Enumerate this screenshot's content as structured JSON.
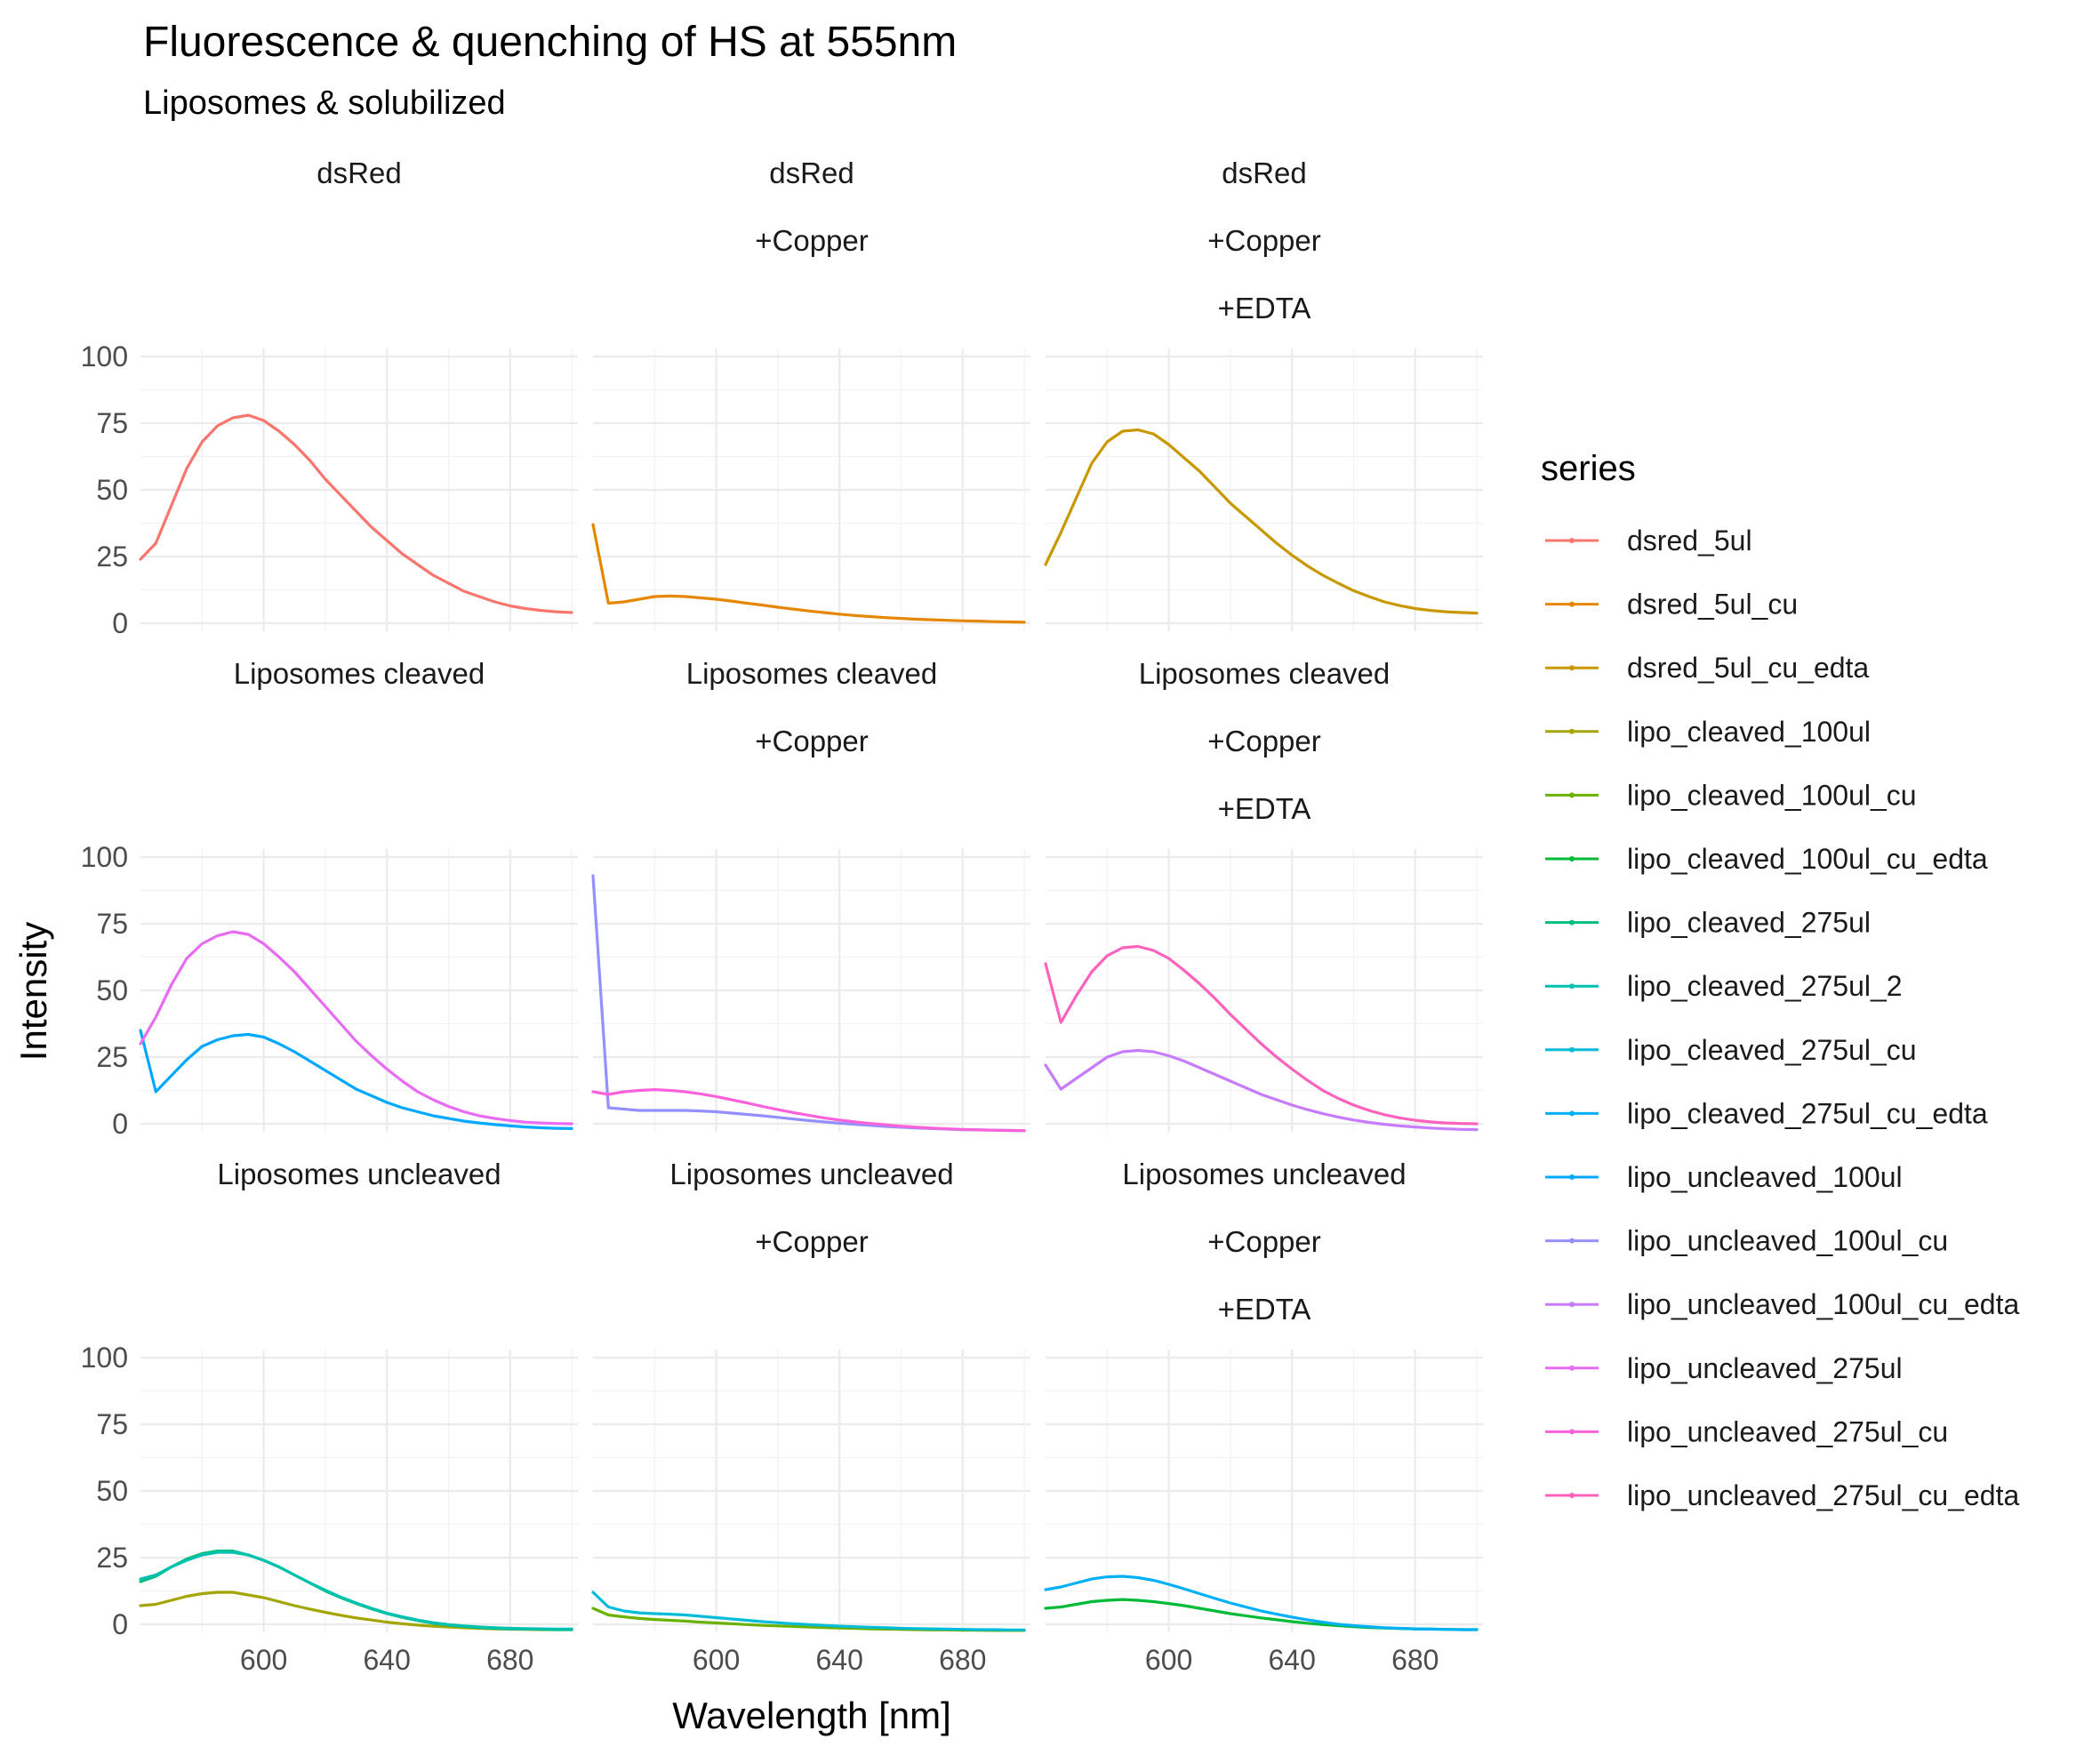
{
  "chart_data": {
    "type": "line",
    "title": "Fluorescence & quenching of HS at 555nm",
    "subtitle": "Liposomes & solubilized",
    "xlabel": "Wavelength [nm]",
    "ylabel": "Intensity",
    "xlim": [
      560,
      702
    ],
    "ylim": [
      -3,
      103
    ],
    "x_ticks": [
      600,
      640,
      680
    ],
    "y_ticks": [
      0,
      25,
      50,
      75,
      100
    ],
    "grid": true,
    "legend": {
      "title": "series",
      "placement": "right",
      "entries": [
        {
          "name": "dsred_5ul",
          "color": "#F8766D"
        },
        {
          "name": "dsred_5ul_cu",
          "color": "#E58700"
        },
        {
          "name": "dsred_5ul_cu_edta",
          "color": "#C99800"
        },
        {
          "name": "lipo_cleaved_100ul",
          "color": "#A3A500"
        },
        {
          "name": "lipo_cleaved_100ul_cu",
          "color": "#6BB100"
        },
        {
          "name": "lipo_cleaved_100ul_cu_edta",
          "color": "#00BA38"
        },
        {
          "name": "lipo_cleaved_275ul",
          "color": "#00BF7D"
        },
        {
          "name": "lipo_cleaved_275ul_2",
          "color": "#00C0AF"
        },
        {
          "name": "lipo_cleaved_275ul_cu",
          "color": "#00BCD8"
        },
        {
          "name": "lipo_cleaved_275ul_cu_edta",
          "color": "#00B0F6"
        },
        {
          "name": "lipo_uncleaved_100ul",
          "color": "#00A9FF"
        },
        {
          "name": "lipo_uncleaved_100ul_cu",
          "color": "#9590FF"
        },
        {
          "name": "lipo_uncleaved_100ul_cu_edta",
          "color": "#C77CFF"
        },
        {
          "name": "lipo_uncleaved_275ul",
          "color": "#E76BF3"
        },
        {
          "name": "lipo_uncleaved_275ul_cu",
          "color": "#FA62DB"
        },
        {
          "name": "lipo_uncleaved_275ul_cu_edta",
          "color": "#FF62BC"
        }
      ]
    },
    "x": [
      560,
      565,
      570,
      575,
      580,
      585,
      590,
      595,
      600,
      605,
      610,
      615,
      620,
      625,
      630,
      635,
      640,
      645,
      650,
      655,
      660,
      665,
      670,
      675,
      680,
      685,
      690,
      695,
      700
    ],
    "panels": [
      {
        "row": 0,
        "col": 0,
        "strip": [
          "dsRed"
        ],
        "series": [
          {
            "name": "dsred_5ul",
            "values": [
              24,
              30,
              44,
              58,
              68,
              74,
              77,
              78,
              76,
              72,
              67,
              61,
              54,
              48,
              42,
              36,
              31,
              26,
              22,
              18,
              15,
              12,
              10,
              8,
              6.5,
              5.5,
              4.8,
              4.3,
              4
            ]
          }
        ]
      },
      {
        "row": 0,
        "col": 1,
        "strip": [
          "dsRed",
          "+Copper"
        ],
        "series": [
          {
            "name": "dsred_5ul_cu",
            "values": [
              37,
              7.5,
              8,
              9,
              10,
              10.2,
              10,
              9.5,
              9,
              8.3,
              7.5,
              6.8,
              6,
              5.3,
              4.6,
              4,
              3.4,
              2.9,
              2.5,
              2.1,
              1.8,
              1.5,
              1.3,
              1.1,
              0.9,
              0.8,
              0.6,
              0.5,
              0.4
            ]
          }
        ]
      },
      {
        "row": 0,
        "col": 2,
        "strip": [
          "dsRed",
          "+Copper",
          "+EDTA"
        ],
        "series": [
          {
            "name": "dsred_5ul_cu_edta",
            "values": [
              22,
              34,
              47,
              60,
              68,
              72,
              72.5,
              71,
              67,
              62,
              57,
              51,
              45,
              40,
              35,
              30,
              25.5,
              21.5,
              18,
              15,
              12.2,
              10,
              8,
              6.6,
              5.5,
              4.8,
              4.3,
              4,
              3.8
            ]
          }
        ]
      },
      {
        "row": 1,
        "col": 0,
        "strip": [
          "Liposomes cleaved"
        ],
        "series": [
          {
            "name": "lipo_uncleaved_100ul",
            "values": [
              35,
              12,
              18,
              24,
              29,
              31.5,
              33,
              33.5,
              32.5,
              30,
              27,
              23.5,
              20,
              16.5,
              13,
              10.5,
              8,
              6,
              4.5,
              3,
              2,
              1,
              0.3,
              -0.3,
              -0.8,
              -1.2,
              -1.5,
              -1.7,
              -1.8
            ]
          },
          {
            "name": "lipo_uncleaved_275ul",
            "values": [
              30,
              40,
              52,
              62,
              67.5,
              70.5,
              72,
              71,
              67.5,
              62.5,
              57,
              50.5,
              44,
              37.5,
              31,
              25.5,
              20.5,
              16,
              12,
              9,
              6.5,
              4.5,
              3,
              2,
              1.2,
              0.6,
              0.3,
              0.1,
              0
            ]
          }
        ]
      },
      {
        "row": 1,
        "col": 1,
        "strip": [
          "Liposomes cleaved",
          "+Copper"
        ],
        "series": [
          {
            "name": "lipo_uncleaved_100ul_cu",
            "values": [
              93,
              6,
              5.5,
              5,
              5,
              5,
              5,
              4.8,
              4.5,
              4,
              3.5,
              3,
              2.4,
              1.8,
              1.2,
              0.7,
              0.2,
              -0.2,
              -0.6,
              -1,
              -1.3,
              -1.6,
              -1.8,
              -2,
              -2.2,
              -2.3,
              -2.4,
              -2.5,
              -2.6
            ]
          },
          {
            "name": "lipo_uncleaved_275ul_cu",
            "values": [
              12,
              11,
              12,
              12.5,
              12.8,
              12.5,
              12,
              11.2,
              10.2,
              9,
              7.8,
              6.5,
              5.3,
              4.2,
              3.2,
              2.2,
              1.4,
              0.7,
              0.1,
              -0.4,
              -0.9,
              -1.3,
              -1.6,
              -1.9,
              -2.1,
              -2.3,
              -2.4,
              -2.5,
              -2.6
            ]
          }
        ]
      },
      {
        "row": 1,
        "col": 2,
        "strip": [
          "Liposomes cleaved",
          "+Copper",
          "+EDTA"
        ],
        "series": [
          {
            "name": "lipo_uncleaved_100ul_cu_edta",
            "values": [
              22,
              13,
              17,
              21,
              25,
              27,
              27.5,
              27,
              25.5,
              23.5,
              21,
              18.5,
              16,
              13.5,
              11,
              9,
              7,
              5.3,
              3.8,
              2.5,
              1.4,
              0.5,
              -0.2,
              -0.8,
              -1.2,
              -1.6,
              -1.9,
              -2.1,
              -2.2
            ]
          },
          {
            "name": "lipo_uncleaved_275ul_cu_edta",
            "values": [
              60,
              38,
              48,
              57,
              63,
              66,
              66.5,
              65,
              62,
              57.5,
              52.5,
              47,
              41,
              35.5,
              30,
              25,
              20.5,
              16.3,
              12.5,
              9.5,
              7,
              5,
              3.4,
              2.2,
              1.3,
              0.7,
              0.3,
              0.1,
              0
            ]
          }
        ]
      },
      {
        "row": 2,
        "col": 0,
        "strip": [
          "Liposomes uncleaved"
        ],
        "series": [
          {
            "name": "lipo_cleaved_100ul",
            "values": [
              7,
              7.5,
              9,
              10.5,
              11.5,
              12,
              12,
              11,
              10,
              8.5,
              7,
              5.7,
              4.5,
              3.4,
              2.4,
              1.6,
              0.8,
              0.2,
              -0.3,
              -0.7,
              -1,
              -1.3,
              -1.5,
              -1.7,
              -1.8,
              -1.9,
              -2,
              -2,
              -2
            ]
          },
          {
            "name": "lipo_cleaved_275ul",
            "values": [
              16,
              18,
              21.5,
              24.5,
              26.5,
              27.5,
              27.5,
              26,
              24,
              21.5,
              18.5,
              15.5,
              12.5,
              10,
              7.8,
              5.8,
              4,
              2.6,
              1.4,
              0.4,
              -0.3,
              -0.8,
              -1.2,
              -1.5,
              -1.7,
              -1.8,
              -1.9,
              -2,
              -2
            ]
          },
          {
            "name": "lipo_cleaved_275ul_2",
            "values": [
              17,
              18.5,
              21.5,
              24,
              26,
              27,
              27,
              26,
              24,
              21.5,
              18.5,
              15.5,
              12.8,
              10.2,
              8,
              6,
              4.2,
              2.8,
              1.6,
              0.6,
              -0.1,
              -0.6,
              -1,
              -1.3,
              -1.5,
              -1.6,
              -1.7,
              -1.8,
              -1.8
            ]
          }
        ]
      },
      {
        "row": 2,
        "col": 1,
        "strip": [
          "Liposomes uncleaved",
          "+Copper"
        ],
        "series": [
          {
            "name": "lipo_cleaved_100ul_cu",
            "values": [
              6,
              3.5,
              2.8,
              2.2,
              1.8,
              1.5,
              1.2,
              0.8,
              0.5,
              0.2,
              -0.1,
              -0.4,
              -0.6,
              -0.8,
              -1,
              -1.2,
              -1.4,
              -1.5,
              -1.7,
              -1.8,
              -1.9,
              -2,
              -2.1,
              -2.1,
              -2.2,
              -2.2,
              -2.3,
              -2.3,
              -2.3
            ]
          },
          {
            "name": "lipo_cleaved_275ul_cu",
            "values": [
              12,
              6.5,
              5,
              4.3,
              4,
              3.8,
              3.5,
              3,
              2.5,
              2,
              1.5,
              1,
              0.6,
              0.2,
              -0.1,
              -0.4,
              -0.7,
              -0.9,
              -1.1,
              -1.3,
              -1.5,
              -1.6,
              -1.7,
              -1.8,
              -1.9,
              -2,
              -2,
              -2.1,
              -2.1
            ]
          }
        ]
      },
      {
        "row": 2,
        "col": 2,
        "strip": [
          "Liposomes uncleaved",
          "+Copper",
          "+EDTA"
        ],
        "series": [
          {
            "name": "lipo_cleaved_100ul_cu_edta",
            "values": [
              6,
              6.5,
              7.5,
              8.5,
              9,
              9.3,
              9,
              8.5,
              7.8,
              7,
              6,
              5,
              4,
              3.2,
              2.4,
              1.7,
              1,
              0.4,
              -0.1,
              -0.5,
              -0.9,
              -1.2,
              -1.4,
              -1.6,
              -1.7,
              -1.8,
              -1.9,
              -2,
              -2
            ]
          },
          {
            "name": "lipo_cleaved_275ul_cu_edta",
            "values": [
              13,
              14,
              15.5,
              17,
              17.8,
              18,
              17.5,
              16.5,
              15,
              13.3,
              11.5,
              9.7,
              8,
              6.5,
              5,
              3.8,
              2.7,
              1.7,
              0.8,
              0,
              -0.5,
              -0.9,
              -1.3,
              -1.5,
              -1.7,
              -1.8,
              -1.9,
              -2,
              -2
            ]
          }
        ]
      }
    ]
  }
}
